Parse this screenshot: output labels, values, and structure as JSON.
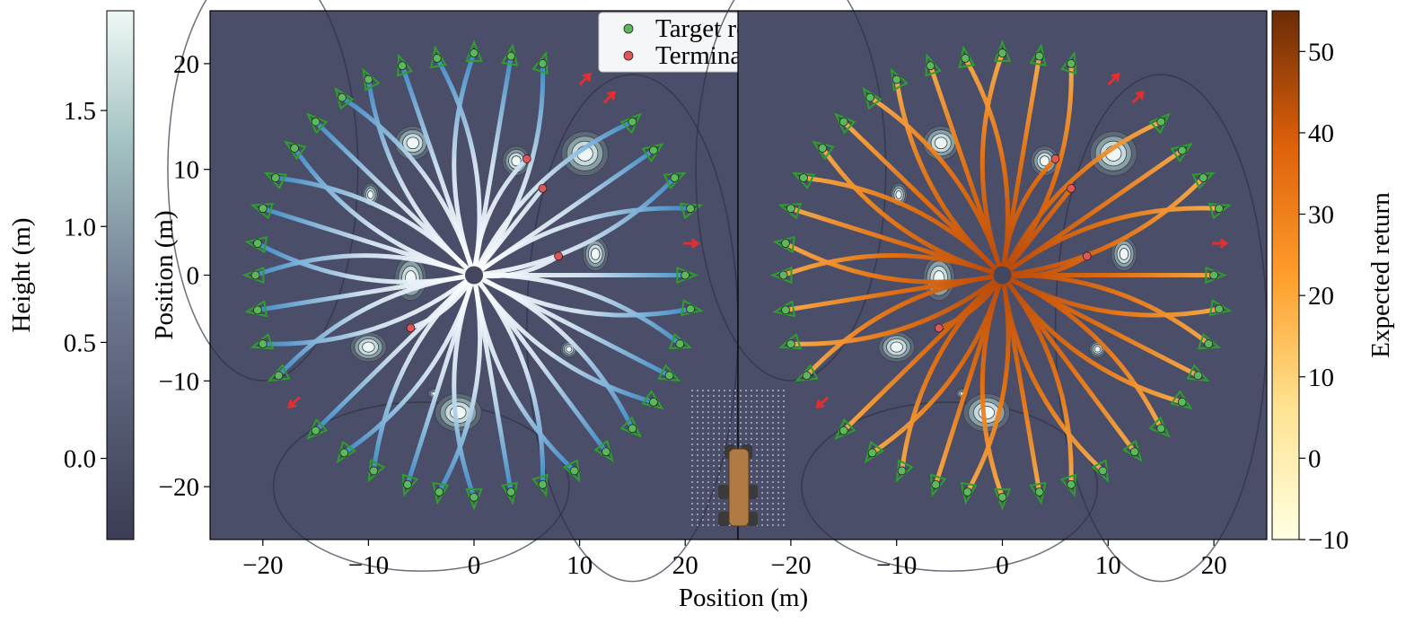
{
  "chart_data": [
    {
      "type": "scatter",
      "ylabel": "Position (m)",
      "xlabel": "Position (m)",
      "xlim": [
        -25,
        25
      ],
      "ylim": [
        -25,
        25
      ],
      "xticks": [
        {
          "value": -20,
          "label": "−20"
        },
        {
          "value": -10,
          "label": "−10"
        },
        0,
        10,
        20
      ],
      "yticks": [
        {
          "value": -20,
          "label": "−20"
        },
        {
          "value": -10,
          "label": "−10"
        },
        0,
        10,
        20
      ],
      "colorbar": {
        "label": "Height (m)",
        "lim": [
          -0.35,
          1.93
        ],
        "ticks": [
          {
            "value": 0,
            "label": "0.0"
          },
          0.5,
          {
            "value": 1,
            "label": "1.0"
          },
          1.5
        ]
      },
      "series": [
        {
          "name": "Target reached",
          "color": "#5cb85c",
          "x": [
            0,
            3.5,
            6.5,
            15,
            17,
            19,
            20.5,
            20,
            20.5,
            19.5,
            18.5,
            17,
            15,
            12.5,
            9.5,
            6.5,
            3.5,
            0,
            -3.3,
            -6.3,
            -9.5,
            -12.3,
            -15,
            -18.5,
            -20,
            -20.5,
            -20.7,
            -20.5,
            -20,
            -18.8,
            -17,
            -15,
            -12.5,
            -10,
            -6.8,
            -3.5
          ],
          "y": [
            21,
            20.7,
            20,
            14.5,
            11.8,
            9.2,
            6.3,
            0,
            -3.2,
            -6.5,
            -9.5,
            -12,
            -14.5,
            -16.7,
            -18.5,
            -19.8,
            -20.5,
            -21,
            -20.5,
            -19.8,
            -18.5,
            -16.8,
            -14.7,
            -9.5,
            -6.5,
            -3.3,
            0,
            3,
            6.3,
            9.2,
            12,
            14.5,
            16.8,
            18.5,
            19.8,
            20.5
          ]
        },
        {
          "name": "Terminal contact",
          "color": "#e05555",
          "x": [
            5,
            6.5,
            8,
            -6
          ],
          "y": [
            11,
            8.2,
            1.8,
            -5
          ]
        }
      ]
    },
    {
      "type": "scatter",
      "xlim": [
        -25,
        25
      ],
      "ylim": [
        -25,
        25
      ],
      "xticks": [
        {
          "value": -20,
          "label": "−20"
        },
        {
          "value": -10,
          "label": "−10"
        },
        0,
        10,
        20
      ],
      "colorbar": {
        "label": "Expected return",
        "lim": [
          -10,
          55
        ],
        "ticks": [
          {
            "value": -10,
            "label": "−10"
          },
          0,
          10,
          20,
          30,
          40,
          50
        ]
      },
      "series": [
        {
          "color": "#5cb85c",
          "x": [
            0,
            3.5,
            6.5,
            15,
            17,
            19,
            20.5,
            20,
            20.5,
            19.5,
            18.5,
            17,
            15,
            12.5,
            9.5,
            6.5,
            3.5,
            0,
            -3.3,
            -6.3,
            -9.5,
            -12.3,
            -15,
            -18.5,
            -20,
            -20.5,
            -20.7,
            -20.5,
            -20,
            -18.8,
            -17,
            -15,
            -12.5,
            -10,
            -6.8,
            -3.5
          ],
          "y": [
            21,
            20.7,
            20,
            14.5,
            11.8,
            9.2,
            6.3,
            0,
            -3.2,
            -6.5,
            -9.5,
            -12,
            -14.5,
            -16.7,
            -18.5,
            -19.8,
            -20.5,
            -21,
            -20.5,
            -19.8,
            -18.5,
            -16.8,
            -14.7,
            -9.5,
            -6.5,
            -3.3,
            0,
            3,
            6.3,
            9.2,
            12,
            14.5,
            16.8,
            18.5,
            19.8,
            20.5
          ]
        },
        {
          "color": "#e05555",
          "x": [
            5,
            6.5,
            8,
            -6
          ],
          "y": [
            11,
            8.2,
            1.8,
            -5
          ]
        }
      ]
    }
  ]
}
